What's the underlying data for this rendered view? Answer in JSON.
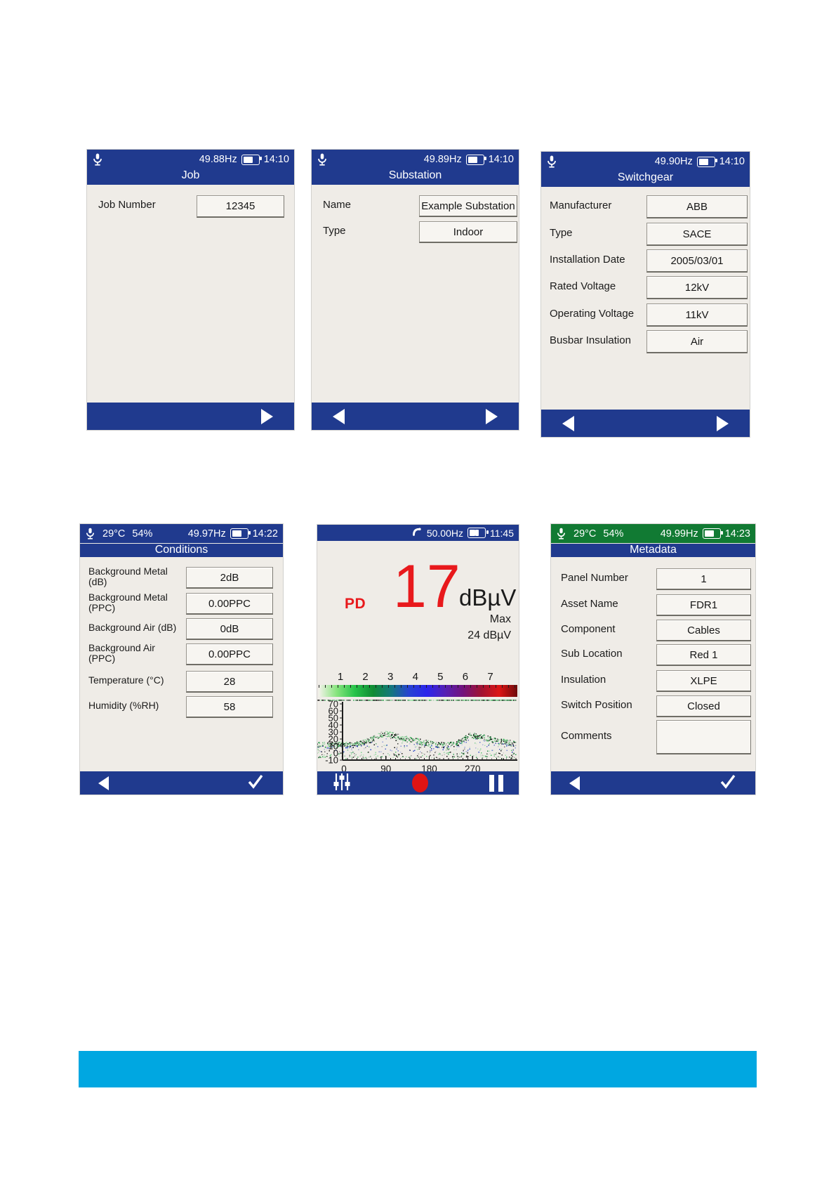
{
  "bottom_bar": {
    "color": "#00a7e1"
  },
  "screens": {
    "job": {
      "status": {
        "freq": "49.88Hz",
        "time": "14:10"
      },
      "title": "Job",
      "fields": [
        {
          "label": "Job Number",
          "value": "12345"
        }
      ]
    },
    "substation": {
      "status": {
        "freq": "49.89Hz",
        "time": "14:10"
      },
      "title": "Substation",
      "fields": [
        {
          "label": "Name",
          "value": "Example Substation"
        },
        {
          "label": "Type",
          "value": "Indoor"
        }
      ]
    },
    "switchgear": {
      "status": {
        "freq": "49.90Hz",
        "time": "14:10"
      },
      "title": "Switchgear",
      "fields": [
        {
          "label": "Manufacturer",
          "value": "ABB"
        },
        {
          "label": "Type",
          "value": "SACE"
        },
        {
          "label": "Installation Date",
          "value": "2005/03/01"
        },
        {
          "label": "Rated Voltage",
          "value": "12kV"
        },
        {
          "label": "Operating Voltage",
          "value": "11kV"
        },
        {
          "label": "Busbar Insulation",
          "value": "Air"
        }
      ]
    },
    "conditions": {
      "status": {
        "temp": "29°C",
        "humidity": "54%",
        "freq": "49.97Hz",
        "time": "14:22"
      },
      "title": "Conditions",
      "fields": [
        {
          "label": "Background Metal (dB)",
          "value": "2dB"
        },
        {
          "label": "Background Metal (PPC)",
          "value": "0.00PPC"
        },
        {
          "label": "Background Air (dB)",
          "value": "0dB"
        },
        {
          "label": "Background Air (PPC)",
          "value": "0.00PPC"
        },
        {
          "label": "Temperature (°C)",
          "value": "28"
        },
        {
          "label": "Humidity (%RH)",
          "value": "58"
        }
      ]
    },
    "measurement": {
      "status": {
        "freq": "50.00Hz",
        "time": "11:45"
      },
      "pd_label": "PD",
      "reading": "17",
      "unit": "dBµV",
      "max_label": "Max",
      "max_value": "24 dBµV"
    },
    "metadata": {
      "status": {
        "temp": "29°C",
        "humidity": "54%",
        "freq": "49.99Hz",
        "time": "14:23"
      },
      "title": "Metadata",
      "fields": [
        {
          "label": "Panel Number",
          "value": "1"
        },
        {
          "label": "Asset Name",
          "value": "FDR1"
        },
        {
          "label": "Component",
          "value": "Cables"
        },
        {
          "label": "Sub Location",
          "value": "Red 1"
        },
        {
          "label": "Insulation",
          "value": "XLPE"
        },
        {
          "label": "Switch Position",
          "value": "Closed"
        },
        {
          "label": "Comments",
          "value": ""
        }
      ]
    }
  },
  "chart_data": {
    "type": "scatter",
    "title": "",
    "x_ticks": [
      0,
      90,
      180,
      270
    ],
    "x_range": [
      0,
      360
    ],
    "y_ticks": [
      70,
      60,
      50,
      40,
      30,
      20,
      10,
      0,
      -10
    ],
    "y_range": [
      -10,
      70
    ],
    "severity_scale": {
      "numbers": [
        1,
        2,
        3,
        4,
        5,
        6,
        7
      ],
      "gradient": [
        "#f3f2ea",
        "#86e47c",
        "#27c34a",
        "#0f8c33",
        "#14787c",
        "#2742d2",
        "#2b24ec",
        "#5520b4",
        "#73127c",
        "#a01232",
        "#dd1515",
        "#6e0a0a"
      ]
    },
    "envelope": [
      [
        0,
        13
      ],
      [
        20,
        13
      ],
      [
        40,
        16
      ],
      [
        60,
        21
      ],
      [
        75,
        27
      ],
      [
        90,
        29
      ],
      [
        105,
        27
      ],
      [
        120,
        24
      ],
      [
        135,
        21
      ],
      [
        150,
        19
      ],
      [
        165,
        17
      ],
      [
        180,
        15
      ],
      [
        200,
        13
      ],
      [
        215,
        13
      ],
      [
        235,
        15
      ],
      [
        250,
        21
      ],
      [
        262,
        27
      ],
      [
        275,
        26
      ],
      [
        290,
        24
      ],
      [
        305,
        21
      ],
      [
        320,
        19
      ],
      [
        340,
        17
      ],
      [
        360,
        14
      ]
    ],
    "baseline_band": [
      -4,
      13
    ],
    "n_points": 3000,
    "point_colors_green": [
      "#3cb95c",
      "#22984a",
      "#5ed077",
      "#118038",
      "#8ce39a"
    ],
    "point_colors_blue": [
      "#2a49c6",
      "#1d33a6"
    ]
  }
}
